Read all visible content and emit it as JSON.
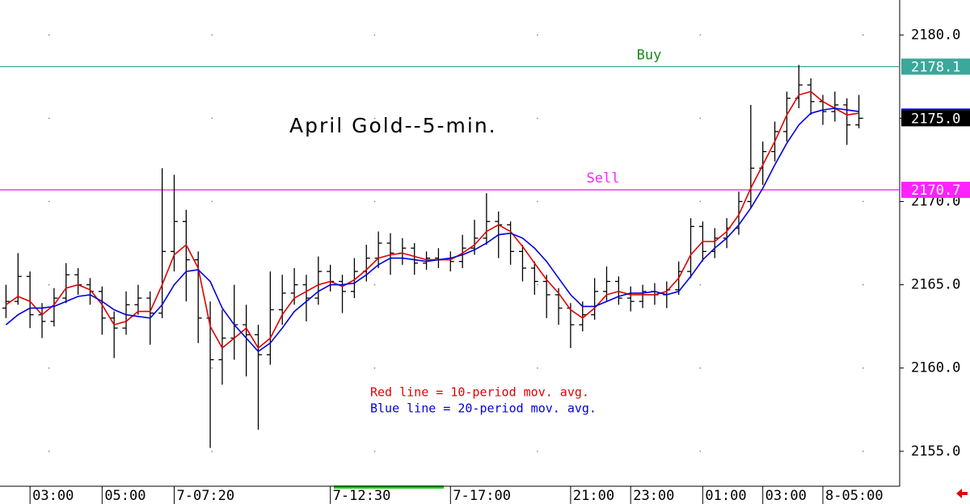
{
  "chart_data": {
    "type": "ohlc",
    "title": "April Gold--5-min.",
    "color": "#000000",
    "categories": [
      null,
      null,
      "03:00",
      null,
      null,
      null,
      null,
      null,
      "05:00",
      null,
      null,
      null,
      null,
      null,
      "7-07:20",
      null,
      null,
      null,
      null,
      null,
      null,
      null,
      null,
      null,
      null,
      null,
      null,
      "7-12:30",
      null,
      null,
      null,
      null,
      null,
      null,
      null,
      null,
      null,
      "7-17:00",
      null,
      null,
      null,
      null,
      null,
      null,
      null,
      null,
      null,
      "21:00",
      null,
      null,
      null,
      null,
      "23:00",
      null,
      null,
      null,
      null,
      null,
      "01:00",
      null,
      null,
      null,
      null,
      "03:00",
      null,
      null,
      null,
      null,
      "8-05:00",
      null,
      null,
      null
    ],
    "open": [
      2163.6,
      2164.0,
      2165.5,
      2163.2,
      2162.8,
      2164.2,
      2165.6,
      2165.0,
      2164.6,
      2163.0,
      2162.4,
      2163.8,
      2164.2,
      2163.3,
      2167.0,
      2168.8,
      2166.5,
      2163.0,
      2160.5,
      2161.8,
      2162.6,
      2162.0,
      2160.8,
      2163.5,
      2164.5,
      2165.0,
      2164.2,
      2165.8,
      2165.2,
      2164.6,
      2165.8,
      2166.6,
      2167.5,
      2166.9,
      2167.2,
      2166.3,
      2166.6,
      2166.5,
      2166.4,
      2167.2,
      2167.8,
      2168.8,
      2168.6,
      2167.0,
      2166.0,
      2165.2,
      2164.4,
      2163.6,
      2162.6,
      2163.2,
      2164.6,
      2165.2,
      2164.2,
      2164.0,
      2164.6,
      2164.4,
      2164.7,
      2165.8,
      2168.5,
      2167.0,
      2167.8,
      2168.4,
      2170.0,
      2172.0,
      2173.0,
      2174.2,
      2176.2,
      2177.0,
      2176.0,
      2175.4,
      2175.8,
      2174.6
    ],
    "high": [
      2165.0,
      2166.9,
      2165.8,
      2163.9,
      2164.8,
      2166.3,
      2166.0,
      2165.4,
      2164.9,
      2163.4,
      2164.6,
      2165.0,
      2164.6,
      2172.0,
      2171.6,
      2169.5,
      2167.0,
      2164.0,
      2163.5,
      2165.0,
      2163.8,
      2162.6,
      2165.8,
      2165.6,
      2166.0,
      2165.6,
      2166.7,
      2166.2,
      2165.6,
      2166.6,
      2167.4,
      2168.2,
      2168.1,
      2167.8,
      2167.5,
      2167.0,
      2167.2,
      2167.0,
      2168.0,
      2168.9,
      2170.5,
      2169.4,
      2168.8,
      2167.4,
      2166.4,
      2165.6,
      2164.8,
      2163.9,
      2164.0,
      2165.4,
      2166.1,
      2165.5,
      2164.9,
      2165.0,
      2165.1,
      2165.2,
      2166.4,
      2169.0,
      2168.8,
      2168.4,
      2169.0,
      2170.6,
      2175.8,
      2173.6,
      2174.8,
      2176.6,
      2178.2,
      2177.4,
      2176.4,
      2176.6,
      2176.2,
      2176.4
    ],
    "low": [
      2163.0,
      2163.8,
      2162.4,
      2161.8,
      2162.5,
      2163.9,
      2164.4,
      2163.8,
      2162.0,
      2160.6,
      2162.0,
      2163.2,
      2161.4,
      2163.0,
      2165.8,
      2164.0,
      2161.5,
      2155.2,
      2159.0,
      2160.5,
      2159.5,
      2156.3,
      2160.2,
      2162.6,
      2163.8,
      2162.8,
      2163.8,
      2164.6,
      2163.3,
      2164.2,
      2165.2,
      2166.0,
      2165.6,
      2166.2,
      2165.6,
      2165.9,
      2166.0,
      2165.8,
      2166.0,
      2166.8,
      2167.4,
      2166.6,
      2166.2,
      2165.2,
      2164.4,
      2163.0,
      2162.6,
      2161.2,
      2162.2,
      2162.9,
      2164.0,
      2163.8,
      2163.4,
      2163.6,
      2163.8,
      2163.6,
      2164.4,
      2165.4,
      2166.4,
      2166.6,
      2167.2,
      2168.0,
      2169.6,
      2171.0,
      2172.4,
      2173.6,
      2175.6,
      2175.2,
      2174.6,
      2174.8,
      2173.4,
      2174.4
    ],
    "close": [
      2164.0,
      2165.5,
      2163.2,
      2162.8,
      2164.2,
      2165.6,
      2165.0,
      2164.6,
      2163.0,
      2162.4,
      2163.8,
      2164.2,
      2163.3,
      2167.0,
      2168.8,
      2166.5,
      2163.0,
      2160.5,
      2161.8,
      2162.6,
      2162.0,
      2160.8,
      2163.5,
      2164.5,
      2165.0,
      2164.2,
      2165.8,
      2165.2,
      2164.6,
      2165.8,
      2166.6,
      2167.5,
      2166.9,
      2167.2,
      2166.3,
      2166.6,
      2166.5,
      2166.4,
      2167.2,
      2167.8,
      2168.8,
      2168.6,
      2167.0,
      2166.0,
      2165.2,
      2164.4,
      2163.6,
      2162.6,
      2163.2,
      2164.6,
      2165.2,
      2164.2,
      2164.0,
      2164.6,
      2164.4,
      2164.7,
      2165.8,
      2168.5,
      2167.0,
      2167.8,
      2168.4,
      2170.0,
      2172.0,
      2173.0,
      2174.2,
      2176.2,
      2177.0,
      2176.0,
      2175.4,
      2175.8,
      2174.6,
      2175.0
    ],
    "lines": [
      {
        "color": "#e00000",
        "values": [
          2163.8,
          2164.3,
          2164.0,
          2163.2,
          2163.8,
          2164.8,
          2165.0,
          2164.7,
          2163.8,
          2162.6,
          2162.8,
          2163.4,
          2163.4,
          2165.0,
          2166.8,
          2167.4,
          2166.0,
          2162.5,
          2161.2,
          2161.8,
          2162.4,
          2161.2,
          2161.8,
          2163.2,
          2164.2,
          2164.6,
          2165.0,
          2165.2,
          2164.9,
          2165.3,
          2165.9,
          2166.6,
          2166.8,
          2166.9,
          2166.7,
          2166.5,
          2166.5,
          2166.5,
          2166.9,
          2167.4,
          2168.2,
          2168.6,
          2168.2,
          2167.3,
          2166.3,
          2165.3,
          2164.5,
          2163.5,
          2163.0,
          2163.6,
          2164.4,
          2164.6,
          2164.4,
          2164.4,
          2164.4,
          2164.6,
          2165.4,
          2166.8,
          2167.6,
          2167.6,
          2168.2,
          2169.2,
          2170.8,
          2172.2,
          2173.6,
          2175.2,
          2176.4,
          2176.6,
          2176.0,
          2175.6,
          2175.2,
          2175.3
        ]
      },
      {
        "color": "#0000dd",
        "values": [
          2162.6,
          2163.2,
          2163.6,
          2163.6,
          2163.7,
          2164.0,
          2164.3,
          2164.4,
          2164.0,
          2163.5,
          2163.2,
          2163.1,
          2163.0,
          2163.8,
          2165.0,
          2165.8,
          2165.9,
          2165.2,
          2163.6,
          2162.6,
          2161.8,
          2161.0,
          2161.5,
          2162.4,
          2163.4,
          2164.0,
          2164.6,
          2165.0,
          2165.0,
          2165.1,
          2165.6,
          2166.2,
          2166.6,
          2166.6,
          2166.5,
          2166.4,
          2166.5,
          2166.6,
          2166.8,
          2167.1,
          2167.5,
          2168.0,
          2168.1,
          2167.8,
          2167.2,
          2166.4,
          2165.4,
          2164.4,
          2163.7,
          2163.7,
          2164.0,
          2164.3,
          2164.5,
          2164.5,
          2164.6,
          2164.4,
          2164.6,
          2165.5,
          2166.5,
          2167.2,
          2167.8,
          2168.6,
          2169.6,
          2170.8,
          2172.2,
          2173.5,
          2174.6,
          2175.3,
          2175.5,
          2175.6,
          2175.5,
          2175.4
        ]
      }
    ],
    "notes": [
      {
        "text": "Red line = 10-period mov. avg.",
        "color": "#e00000"
      },
      {
        "text": "Blue line = 20-period mov. avg.",
        "color": "#0000dd"
      }
    ],
    "levels": [
      {
        "label": "Buy",
        "value": 2178.1,
        "value_label": "2178.1",
        "color": "#3aa89a",
        "label_color": "#1a8a1a"
      },
      {
        "label": "Sell",
        "value": 2170.7,
        "value_label": "2170.7",
        "color": "#ff22ff",
        "label_color": "#ff22ff"
      }
    ],
    "last": {
      "value": 2175.0,
      "label": "2175.0"
    },
    "ylim": [
      2153,
      2182.1
    ],
    "yticks": [
      {
        "value": 2155,
        "label": "2155.0"
      },
      {
        "value": 2160,
        "label": "2160.0"
      },
      {
        "value": 2165,
        "label": "2165.0"
      },
      {
        "value": 2170,
        "label": "2170.0"
      },
      {
        "value": 2175,
        "label": "2175.0"
      },
      {
        "value": 2180,
        "label": "2180.0"
      }
    ],
    "grid": true
  }
}
